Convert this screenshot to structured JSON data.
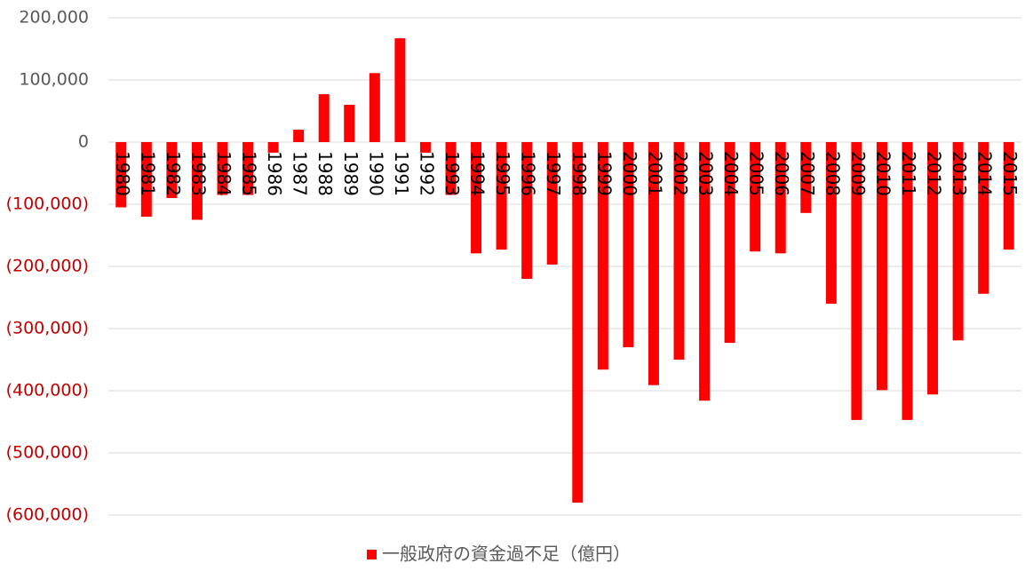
{
  "chart_data": {
    "type": "bar",
    "categories": [
      "1980",
      "1981",
      "1982",
      "1983",
      "1984",
      "1985",
      "1986",
      "1987",
      "1988",
      "1989",
      "1990",
      "1991",
      "1992",
      "1993",
      "1994",
      "1995",
      "1996",
      "1997",
      "1998",
      "1999",
      "2000",
      "2001",
      "2002",
      "2003",
      "2004",
      "2005",
      "2006",
      "2007",
      "2008",
      "2009",
      "2010",
      "2011",
      "2012",
      "2013",
      "2014",
      "2015"
    ],
    "series": [
      {
        "name": "一般政府の資金過不足（億円）",
        "color": "#ff0000",
        "values": [
          -105000,
          -120000,
          -90000,
          -125000,
          -85000,
          -85000,
          -17000,
          20000,
          77000,
          60000,
          111000,
          167000,
          -17000,
          -85000,
          -179000,
          -173000,
          -220000,
          -197000,
          -580000,
          -366000,
          -330000,
          -391000,
          -350000,
          -416000,
          -323000,
          -176000,
          -179000,
          -114000,
          -260000,
          -447000,
          -399000,
          -447000,
          -406000,
          -319000,
          -244000,
          -173000
        ]
      }
    ],
    "ylim": [
      -600000,
      200000
    ],
    "yticks": [
      {
        "value": -600000,
        "label": "(600,000)"
      },
      {
        "value": -500000,
        "label": "(500,000)"
      },
      {
        "value": -400000,
        "label": "(400,000)"
      },
      {
        "value": -300000,
        "label": "(300,000)"
      },
      {
        "value": -200000,
        "label": "(200,000)"
      },
      {
        "value": -100000,
        "label": "(100,000)"
      },
      0,
      {
        "value": 100000,
        "label": "100,000"
      },
      {
        "value": 200000,
        "label": "200,000"
      }
    ],
    "grid": true,
    "legend": "bottom",
    "negative_tick_color": "#c00000",
    "tick_color": "#595959"
  }
}
